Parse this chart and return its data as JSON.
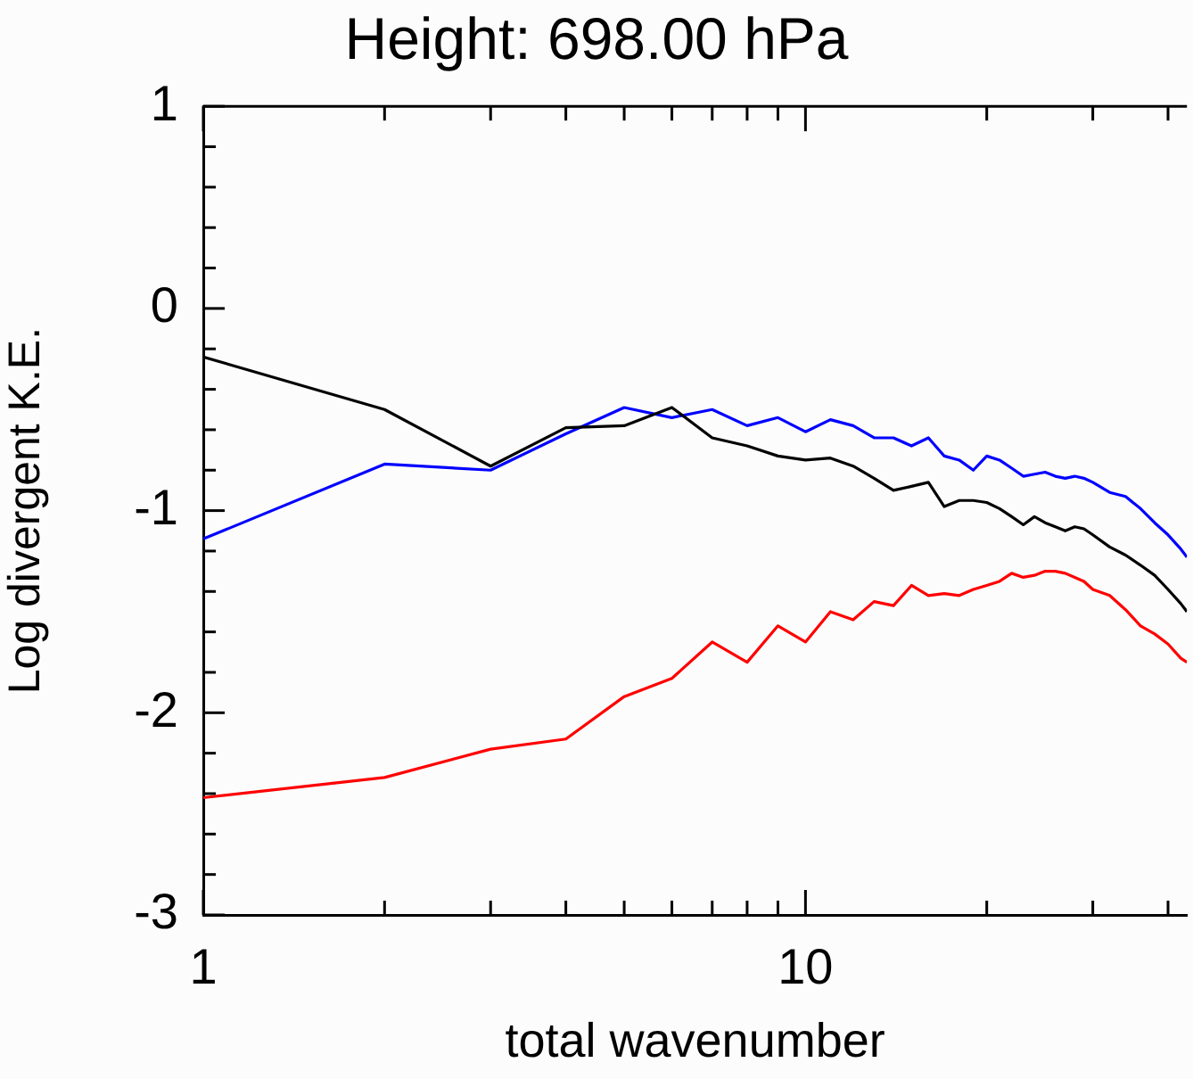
{
  "chart_data": {
    "type": "line",
    "title": "Height: 698.00 hPa",
    "xlabel": "total wavenumber",
    "ylabel": "Log divergent K.E.",
    "log": "x",
    "grid": false,
    "legend": false,
    "marker": "none",
    "line_style": "solid",
    "xlim": [
      1,
      43
    ],
    "ylim": [
      -3,
      1
    ],
    "xticks": [
      1,
      {
        "value": 2,
        "label": null
      },
      {
        "value": 3,
        "label": null
      },
      {
        "value": 4,
        "label": null
      },
      {
        "value": 5,
        "label": null
      },
      {
        "value": 6,
        "label": null
      },
      {
        "value": 7,
        "label": null
      },
      {
        "value": 8,
        "label": null
      },
      {
        "value": 9,
        "label": null
      },
      10,
      {
        "value": 20,
        "label": null
      },
      {
        "value": 30,
        "label": null
      },
      {
        "value": 40,
        "label": null
      }
    ],
    "yticks": [
      -3,
      {
        "value": -2.8,
        "label": null
      },
      {
        "value": -2.6,
        "label": null
      },
      {
        "value": -2.4,
        "label": null
      },
      {
        "value": -2.2,
        "label": null
      },
      -2,
      {
        "value": -1.8,
        "label": null
      },
      {
        "value": -1.6,
        "label": null
      },
      {
        "value": -1.4,
        "label": null
      },
      {
        "value": -1.2,
        "label": null
      },
      -1,
      {
        "value": -0.8,
        "label": null
      },
      {
        "value": -0.6,
        "label": null
      },
      {
        "value": -0.4,
        "label": null
      },
      {
        "value": -0.2,
        "label": null
      },
      0,
      {
        "value": 0.2,
        "label": null
      },
      {
        "value": 0.4,
        "label": null
      },
      {
        "value": 0.6,
        "label": null
      },
      {
        "value": 0.8,
        "label": null
      },
      1
    ],
    "x": [
      1,
      2,
      3,
      4,
      5,
      6,
      7,
      8,
      9,
      10,
      11,
      12,
      13,
      14,
      15,
      16,
      17,
      18,
      19,
      20,
      21,
      22,
      23,
      24,
      25,
      26,
      27,
      28,
      29,
      30,
      32,
      34,
      36,
      38,
      40,
      42,
      43
    ],
    "series": [
      {
        "color": "#000000",
        "values": [
          -0.24,
          -0.5,
          -0.78,
          -0.59,
          -0.58,
          -0.49,
          -0.64,
          -0.68,
          -0.73,
          -0.75,
          -0.74,
          -0.78,
          -0.84,
          -0.9,
          -0.88,
          -0.86,
          -0.98,
          -0.95,
          -0.95,
          -0.96,
          -0.99,
          -1.03,
          -1.07,
          -1.03,
          -1.06,
          -1.08,
          -1.1,
          -1.08,
          -1.09,
          -1.12,
          -1.18,
          -1.22,
          -1.27,
          -1.32,
          -1.39,
          -1.46,
          -1.5
        ]
      },
      {
        "color": "#0000ff",
        "values": [
          -1.14,
          -0.77,
          -0.8,
          -0.62,
          -0.49,
          -0.54,
          -0.5,
          -0.58,
          -0.54,
          -0.61,
          -0.55,
          -0.58,
          -0.64,
          -0.64,
          -0.68,
          -0.64,
          -0.73,
          -0.75,
          -0.8,
          -0.73,
          -0.75,
          -0.79,
          -0.83,
          -0.82,
          -0.81,
          -0.83,
          -0.84,
          -0.83,
          -0.84,
          -0.86,
          -0.91,
          -0.93,
          -0.99,
          -1.06,
          -1.12,
          -1.19,
          -1.23
        ]
      },
      {
        "color": "#ff0000",
        "values": [
          -2.42,
          -2.32,
          -2.18,
          -2.13,
          -1.92,
          -1.83,
          -1.65,
          -1.75,
          -1.57,
          -1.65,
          -1.5,
          -1.54,
          -1.45,
          -1.47,
          -1.37,
          -1.42,
          -1.41,
          -1.42,
          -1.39,
          -1.37,
          -1.35,
          -1.31,
          -1.33,
          -1.32,
          -1.3,
          -1.3,
          -1.31,
          -1.33,
          -1.35,
          -1.39,
          -1.42,
          -1.49,
          -1.57,
          -1.61,
          -1.66,
          -1.73,
          -1.75
        ]
      }
    ]
  }
}
